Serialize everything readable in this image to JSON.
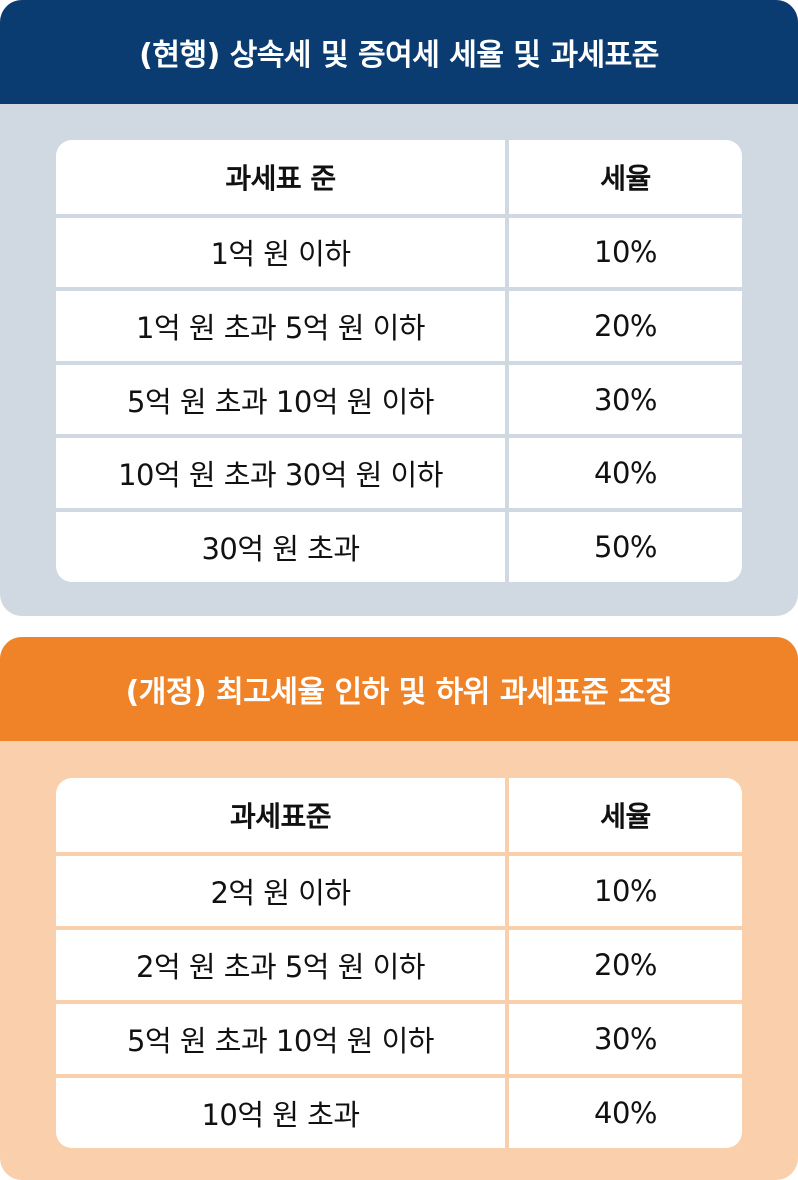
{
  "current": {
    "title": "(현행) 상속세 및 증여세 세율 및 과세표준",
    "header": {
      "base": "과세표 준",
      "rate": "세율"
    },
    "rows": [
      {
        "base": "1억 원 이하",
        "rate": "10%"
      },
      {
        "base": "1억 원 초과 5억 원 이하",
        "rate": "20%"
      },
      {
        "base": "5억 원 초과 10억 원 이하",
        "rate": "30%"
      },
      {
        "base": "10억 원 초과 30억 원 이하",
        "rate": "40%"
      },
      {
        "base": "30억 원 초과",
        "rate": "50%"
      }
    ]
  },
  "revised": {
    "title": "(개정) 최고세율 인하 및 하위 과세표준 조정",
    "header": {
      "base": "과세표준",
      "rate": "세율"
    },
    "rows": [
      {
        "base": "2억 원 이하",
        "rate": "10%"
      },
      {
        "base": "2억 원 초과 5억 원 이하",
        "rate": "20%"
      },
      {
        "base": "5억 원 초과 10억 원 이하",
        "rate": "30%"
      },
      {
        "base": "10억 원 초과",
        "rate": "40%"
      }
    ]
  },
  "colors": {
    "current_header": "#0a3b71",
    "current_panel": "#d0d8e1",
    "revised_header": "#f08327",
    "revised_panel": "#f9cfac"
  }
}
